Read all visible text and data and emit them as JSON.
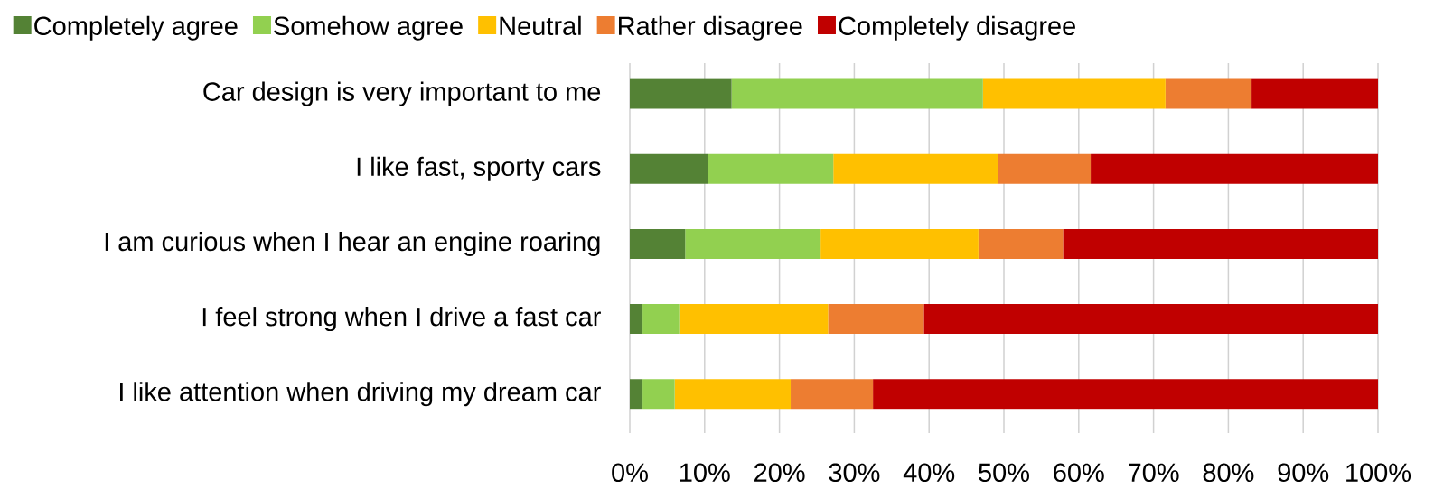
{
  "chart_data": {
    "type": "bar",
    "orientation": "horizontal",
    "stacked": true,
    "categories": [
      "Car design is very important to me",
      "I like fast, sporty cars",
      "I am curious when I hear an engine roaring",
      "I feel strong when I drive a fast car",
      "I like attention when driving my dream car"
    ],
    "series": [
      {
        "name": "Completely agree",
        "color": "#548235",
        "values": [
          13.6,
          10.4,
          7.4,
          1.7,
          1.7
        ]
      },
      {
        "name": "Somehow agree",
        "color": "#92d050",
        "values": [
          33.6,
          16.8,
          18.1,
          4.9,
          4.3
        ]
      },
      {
        "name": "Neutral",
        "color": "#ffc000",
        "values": [
          24.4,
          22.0,
          21.1,
          19.9,
          15.5
        ]
      },
      {
        "name": "Rather disagree",
        "color": "#ed7d31",
        "values": [
          11.5,
          12.4,
          11.3,
          12.8,
          11.0
        ]
      },
      {
        "name": "Completely disagree",
        "color": "#c00000",
        "values": [
          16.9,
          38.4,
          42.1,
          60.7,
          67.5
        ]
      }
    ],
    "xlim": [
      0,
      100
    ],
    "xticks": [
      {
        "value": 0,
        "label": "0%"
      },
      {
        "value": 10,
        "label": "10%"
      },
      {
        "value": 20,
        "label": "20%"
      },
      {
        "value": 30,
        "label": "30%"
      },
      {
        "value": 40,
        "label": "40%"
      },
      {
        "value": 50,
        "label": "50%"
      },
      {
        "value": 60,
        "label": "60%"
      },
      {
        "value": 70,
        "label": "70%"
      },
      {
        "value": 80,
        "label": "80%"
      },
      {
        "value": 90,
        "label": "90%"
      },
      {
        "value": 100,
        "label": "100%"
      }
    ],
    "grid": "x",
    "legend": "top"
  }
}
